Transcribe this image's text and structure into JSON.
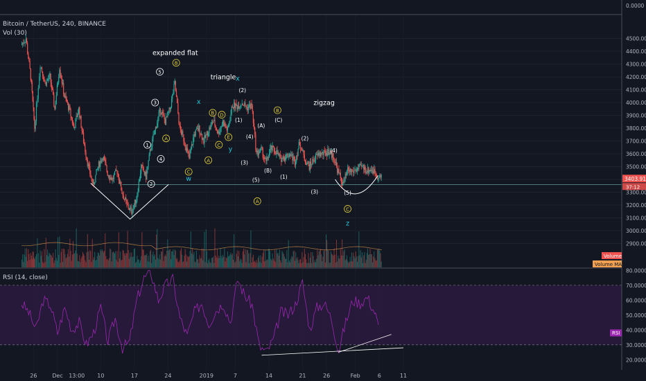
{
  "header": {
    "symbol": "Bitcoin / TetherUS, 240, BINANCE",
    "volume_label": "Vol (30)",
    "rsi_label": "RSI (14, close)"
  },
  "colors": {
    "background": "#131722",
    "up": "#26a69a",
    "down": "#ef5350",
    "rsi_line": "#9c27b0",
    "rsi_band": "#2a1a3e",
    "price_tag": "#ef5350",
    "volume_ma": "#f0a050",
    "label_yellow": "#e6d03c",
    "label_cyan": "#26c6da"
  },
  "chart_data": {
    "type": "candlestick",
    "y_ticks": [
      "0.0000",
      "4500.00",
      "4400.00",
      "4300.00",
      "4200.00",
      "4100.00",
      "4000.00",
      "3900.00",
      "3800.00",
      "3700.00",
      "3600.00",
      "3500.00",
      "3400.00",
      "3300.00",
      "3200.00",
      "3100.00",
      "3000.00",
      "2900.00"
    ],
    "ylim": [
      2800,
      4600
    ],
    "x_ticks": [
      "26",
      "Dec",
      "13:00",
      "10",
      "17",
      "24",
      "2019",
      "7",
      "14",
      "21",
      "26",
      "Feb",
      "6",
      "11"
    ],
    "x_tick_days": [
      -5,
      0,
      4,
      9,
      16,
      23,
      31,
      37,
      44,
      51,
      56,
      62,
      67,
      72
    ],
    "last_price": "3403.91",
    "countdown": "37:12",
    "volume_tags": [
      "Volume",
      "Volume MA"
    ],
    "rsi": {
      "ylim": [
        15,
        82
      ],
      "ticks": [
        "80.0000",
        "70.0000",
        "60.0000",
        "50.0000",
        "40.0000",
        "30.0000",
        "20.0000"
      ],
      "upper": 70,
      "lower": 30,
      "tag": "RSI"
    },
    "price_path": [
      [
        -7.5,
        4450
      ],
      [
        -6.5,
        4500
      ],
      [
        -5.5,
        4200
      ],
      [
        -4.7,
        3800
      ],
      [
        -3.5,
        4300
      ],
      [
        -2.5,
        4150
      ],
      [
        -1.5,
        4200
      ],
      [
        -0.5,
        3950
      ],
      [
        0.5,
        4280
      ],
      [
        1.5,
        4050
      ],
      [
        2.5,
        3950
      ],
      [
        3.5,
        3800
      ],
      [
        4.5,
        3950
      ],
      [
        5.5,
        3700
      ],
      [
        6.5,
        3500
      ],
      [
        7.5,
        3350
      ],
      [
        8.5,
        3500
      ],
      [
        9.5,
        3580
      ],
      [
        10.5,
        3450
      ],
      [
        11.5,
        3400
      ],
      [
        12.5,
        3470
      ],
      [
        13.5,
        3300
      ],
      [
        14.5,
        3200
      ],
      [
        15.5,
        3150
      ],
      [
        16.5,
        3250
      ],
      [
        17.5,
        3500
      ],
      [
        18.5,
        3420
      ],
      [
        19.5,
        3650
      ],
      [
        20.5,
        3800
      ],
      [
        21.5,
        3950
      ],
      [
        22.5,
        3850
      ],
      [
        23.5,
        3950
      ],
      [
        24.5,
        4150
      ],
      [
        25.5,
        3800
      ],
      [
        26.5,
        3700
      ],
      [
        27.5,
        3560
      ],
      [
        28.5,
        3750
      ],
      [
        29.5,
        3800
      ],
      [
        30.5,
        3700
      ],
      [
        31.5,
        3780
      ],
      [
        32.5,
        3860
      ],
      [
        33.5,
        3760
      ],
      [
        34.5,
        3850
      ],
      [
        35.5,
        3780
      ],
      [
        36.5,
        3980
      ],
      [
        37.5,
        3970
      ],
      [
        38.5,
        4000
      ],
      [
        39.5,
        3960
      ],
      [
        40.5,
        3980
      ],
      [
        41.5,
        3600
      ],
      [
        42.5,
        3630
      ],
      [
        43.5,
        3530
      ],
      [
        44.5,
        3640
      ],
      [
        45.5,
        3620
      ],
      [
        46.5,
        3560
      ],
      [
        47.5,
        3580
      ],
      [
        48.5,
        3600
      ],
      [
        49.5,
        3540
      ],
      [
        50.5,
        3690
      ],
      [
        51.5,
        3560
      ],
      [
        52.5,
        3500
      ],
      [
        53.5,
        3560
      ],
      [
        54.5,
        3600
      ],
      [
        55.5,
        3600
      ],
      [
        56.5,
        3620
      ],
      [
        57.5,
        3580
      ],
      [
        58.5,
        3460
      ],
      [
        59.5,
        3360
      ],
      [
        60.5,
        3470
      ],
      [
        61.5,
        3460
      ],
      [
        62.5,
        3480
      ],
      [
        63.5,
        3500
      ],
      [
        64.5,
        3470
      ],
      [
        65.5,
        3480
      ],
      [
        66.5,
        3440
      ],
      [
        67.5,
        3410
      ]
    ],
    "rsi_path": [
      [
        -7.5,
        58
      ],
      [
        -6,
        52
      ],
      [
        -4.5,
        40
      ],
      [
        -3,
        60
      ],
      [
        -1.5,
        57
      ],
      [
        0,
        38
      ],
      [
        1.5,
        55
      ],
      [
        3,
        40
      ],
      [
        4.5,
        45
      ],
      [
        6,
        30
      ],
      [
        7.5,
        38
      ],
      [
        9,
        55
      ],
      [
        10.5,
        32
      ],
      [
        12,
        48
      ],
      [
        13.5,
        28
      ],
      [
        15,
        32
      ],
      [
        16.5,
        60
      ],
      [
        18,
        75
      ],
      [
        19.5,
        78
      ],
      [
        21,
        60
      ],
      [
        22.5,
        70
      ],
      [
        24,
        74
      ],
      [
        25.5,
        48
      ],
      [
        27,
        36
      ],
      [
        28.5,
        52
      ],
      [
        30,
        58
      ],
      [
        31.5,
        44
      ],
      [
        33,
        53
      ],
      [
        34.5,
        58
      ],
      [
        36,
        45
      ],
      [
        37.5,
        74
      ],
      [
        39,
        63
      ],
      [
        40.5,
        57
      ],
      [
        42,
        29
      ],
      [
        43.5,
        25
      ],
      [
        45,
        34
      ],
      [
        46.5,
        52
      ],
      [
        48,
        50
      ],
      [
        49.5,
        57
      ],
      [
        51,
        72
      ],
      [
        52.5,
        40
      ],
      [
        54,
        55
      ],
      [
        55.5,
        58
      ],
      [
        57,
        48
      ],
      [
        58.5,
        26
      ],
      [
        60,
        45
      ],
      [
        61.5,
        60
      ],
      [
        63,
        58
      ],
      [
        64.5,
        62
      ],
      [
        66,
        52
      ],
      [
        67,
        40
      ]
    ],
    "wave_labels": [
      {
        "text": "expanded flat",
        "day": 24.5,
        "price": 4370,
        "kind": "title"
      },
      {
        "text": "triangle",
        "day": 34.5,
        "price": 4180,
        "kind": "title"
      },
      {
        "text": "zigzag",
        "day": 55.5,
        "price": 3980,
        "kind": "title"
      },
      {
        "text": "B",
        "day": 24.7,
        "price": 4310,
        "kind": "circle_yellow"
      },
      {
        "text": "5",
        "day": 21.3,
        "price": 4240,
        "kind": "circle_white"
      },
      {
        "text": "3",
        "day": 20.3,
        "price": 4000,
        "kind": "circle_white"
      },
      {
        "text": "1",
        "day": 18.7,
        "price": 3670,
        "kind": "circle_white"
      },
      {
        "text": "4",
        "day": 21.5,
        "price": 3560,
        "kind": "circle_white"
      },
      {
        "text": "2",
        "day": 19.5,
        "price": 3365,
        "kind": "circle_white"
      },
      {
        "text": "A",
        "day": 22.6,
        "price": 3720,
        "kind": "circle_yellow"
      },
      {
        "text": "C",
        "day": 27.3,
        "price": 3460,
        "kind": "circle_yellow"
      },
      {
        "text": "w",
        "day": 27.3,
        "price": 3390,
        "kind": "text_cyan"
      },
      {
        "text": "x",
        "day": 29.4,
        "price": 3990,
        "kind": "text_cyan"
      },
      {
        "text": "B",
        "day": 32.3,
        "price": 3920,
        "kind": "circle_yellow"
      },
      {
        "text": "D",
        "day": 34.2,
        "price": 3905,
        "kind": "circle_yellow"
      },
      {
        "text": "A",
        "day": 31.4,
        "price": 3550,
        "kind": "circle_yellow"
      },
      {
        "text": "C",
        "day": 33.6,
        "price": 3670,
        "kind": "circle_yellow"
      },
      {
        "text": "E",
        "day": 35.6,
        "price": 3730,
        "kind": "circle_yellow"
      },
      {
        "text": "y",
        "day": 36.0,
        "price": 3620,
        "kind": "text_cyan"
      },
      {
        "text": "x",
        "day": 37.5,
        "price": 4170,
        "kind": "text_cyan"
      },
      {
        "text": "(2)",
        "day": 38.5,
        "price": 4080,
        "kind": "paren"
      },
      {
        "text": "(1)",
        "day": 37.7,
        "price": 3850,
        "kind": "paren"
      },
      {
        "text": "(4)",
        "day": 40.0,
        "price": 3720,
        "kind": "paren"
      },
      {
        "text": "(3)",
        "day": 38.9,
        "price": 3515,
        "kind": "paren"
      },
      {
        "text": "(5)",
        "day": 41.3,
        "price": 3380,
        "kind": "paren"
      },
      {
        "text": "(A)",
        "day": 42.4,
        "price": 3805,
        "kind": "paren"
      },
      {
        "text": "(B)",
        "day": 43.8,
        "price": 3455,
        "kind": "paren"
      },
      {
        "text": "(C)",
        "day": 46.0,
        "price": 3850,
        "kind": "paren"
      },
      {
        "text": "B",
        "day": 45.8,
        "price": 3940,
        "kind": "circle_yellow"
      },
      {
        "text": "(1)",
        "day": 47.1,
        "price": 3405,
        "kind": "paren"
      },
      {
        "text": "(2)",
        "day": 51.5,
        "price": 3705,
        "kind": "paren"
      },
      {
        "text": "A",
        "day": 41.6,
        "price": 3230,
        "kind": "circle_yellow"
      },
      {
        "text": "(3)",
        "day": 53.5,
        "price": 3290,
        "kind": "paren"
      },
      {
        "text": "(4)",
        "day": 57.5,
        "price": 3610,
        "kind": "paren"
      },
      {
        "text": "(5)",
        "day": 60.4,
        "price": 3280,
        "kind": "paren"
      },
      {
        "text": "C",
        "day": 60.4,
        "price": 3170,
        "kind": "circle_yellow"
      },
      {
        "text": "z",
        "day": 60.4,
        "price": 3040,
        "kind": "text_cyan"
      }
    ]
  }
}
